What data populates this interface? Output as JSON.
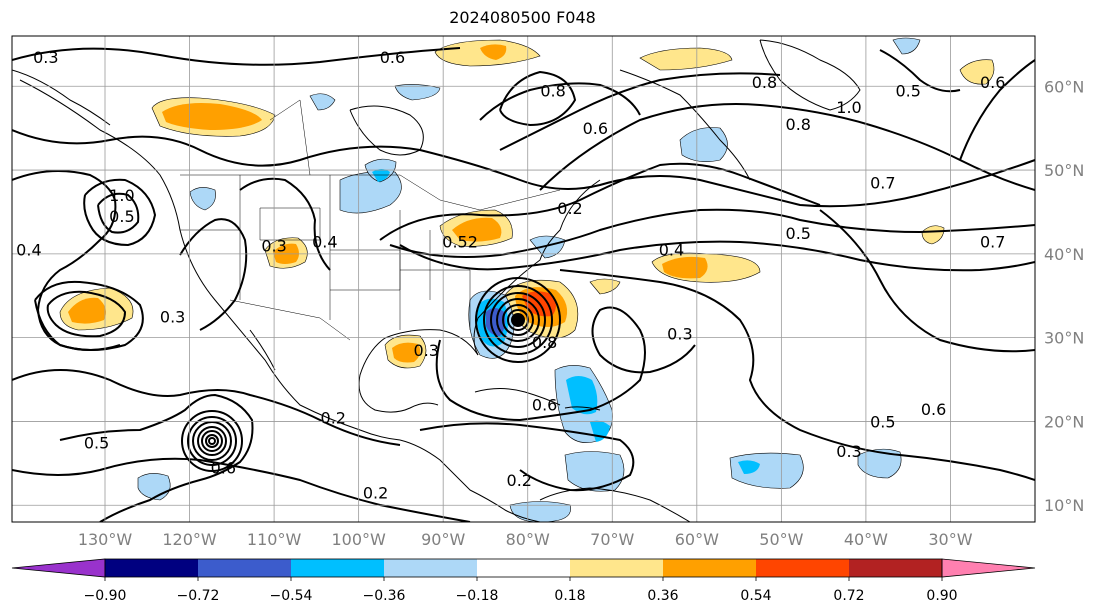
{
  "title": "2024080500 F048",
  "colors": {
    "land_outline": "#000000",
    "contour": "#000000",
    "grid": "#9a9a9a",
    "axis_label": "#808080"
  },
  "map": {
    "lon_range": [
      -141,
      -20
    ],
    "lat_range": [
      8,
      66
    ],
    "lon_ticks": [
      {
        "value": -130,
        "label": "130°W"
      },
      {
        "value": -120,
        "label": "120°W"
      },
      {
        "value": -110,
        "label": "110°W"
      },
      {
        "value": -100,
        "label": "100°W"
      },
      {
        "value": -90,
        "label": "90°W"
      },
      {
        "value": -80,
        "label": "80°W"
      },
      {
        "value": -70,
        "label": "70°W"
      },
      {
        "value": -60,
        "label": "60°W"
      },
      {
        "value": -50,
        "label": "50°W"
      },
      {
        "value": -40,
        "label": "40°W"
      },
      {
        "value": -30,
        "label": "30°W"
      }
    ],
    "lat_ticks": [
      {
        "value": 10,
        "label": "10°N"
      },
      {
        "value": 20,
        "label": "20°N"
      },
      {
        "value": 30,
        "label": "30°N"
      },
      {
        "value": 40,
        "label": "40°N"
      },
      {
        "value": 50,
        "label": "50°N"
      },
      {
        "value": 60,
        "label": "60°N"
      }
    ],
    "contour_labels": [
      {
        "text": "0.3",
        "lon": -137,
        "lat": 63.5
      },
      {
        "text": "0.6",
        "lon": -96,
        "lat": 63.5
      },
      {
        "text": "0.6",
        "lon": -72,
        "lat": 55
      },
      {
        "text": "0.8",
        "lon": -77,
        "lat": 59.5
      },
      {
        "text": "0.8",
        "lon": -52,
        "lat": 60.5
      },
      {
        "text": "0.8",
        "lon": -48,
        "lat": 55.5
      },
      {
        "text": "1.0",
        "lon": -42,
        "lat": 57.5
      },
      {
        "text": "0.5",
        "lon": -35,
        "lat": 59.5
      },
      {
        "text": "0.6",
        "lon": -25,
        "lat": 60.5
      },
      {
        "text": "0.2",
        "lon": -75,
        "lat": 45.5
      },
      {
        "text": "0.5",
        "lon": -48,
        "lat": 42.5
      },
      {
        "text": "0.4",
        "lon": -63,
        "lat": 40.5
      },
      {
        "text": "0.7",
        "lon": -38,
        "lat": 48.5
      },
      {
        "text": "0.7",
        "lon": -25,
        "lat": 41.5
      },
      {
        "text": "0.3",
        "lon": -62,
        "lat": 30.5
      },
      {
        "text": "0.5",
        "lon": -128,
        "lat": 44.5
      },
      {
        "text": "1.0",
        "lon": -128,
        "lat": 47
      },
      {
        "text": "0.4",
        "lon": -139,
        "lat": 40.5
      },
      {
        "text": "0.3",
        "lon": -110,
        "lat": 41
      },
      {
        "text": "0.4",
        "lon": -104,
        "lat": 41.5
      },
      {
        "text": "0.3",
        "lon": -122,
        "lat": 32.5
      },
      {
        "text": "0.3",
        "lon": -92,
        "lat": 28.5
      },
      {
        "text": "0.2",
        "lon": -103,
        "lat": 20.5
      },
      {
        "text": "0.5",
        "lon": -131,
        "lat": 17.5
      },
      {
        "text": "0.6",
        "lon": -116,
        "lat": 14.5
      },
      {
        "text": "0.2",
        "lon": -98,
        "lat": 11.5
      },
      {
        "text": "0.2",
        "lon": -81,
        "lat": 13
      },
      {
        "text": "0.3",
        "lon": -42,
        "lat": 16.5
      },
      {
        "text": "0.5",
        "lon": -38,
        "lat": 20
      },
      {
        "text": "0.6",
        "lon": -32,
        "lat": 21.5
      },
      {
        "text": "0.52",
        "lon": -88,
        "lat": 41.5
      },
      {
        "text": "0.6",
        "lon": -78,
        "lat": 22
      },
      {
        "text": "0.8",
        "lon": -78,
        "lat": 29.5
      }
    ]
  },
  "colorbar": {
    "colors": [
      "#9932cc",
      "#000080",
      "#3c5ccc",
      "#00bfff",
      "#add8f7",
      "#ffffff",
      "#ffe68c",
      "#ffa000",
      "#ff4500",
      "#b22222",
      "#ff80b0"
    ],
    "tick_labels": [
      "−0.90",
      "−0.72",
      "−0.54",
      "−0.36",
      "−0.18",
      "0.18",
      "0.36",
      "0.54",
      "0.72",
      "0.90"
    ]
  }
}
